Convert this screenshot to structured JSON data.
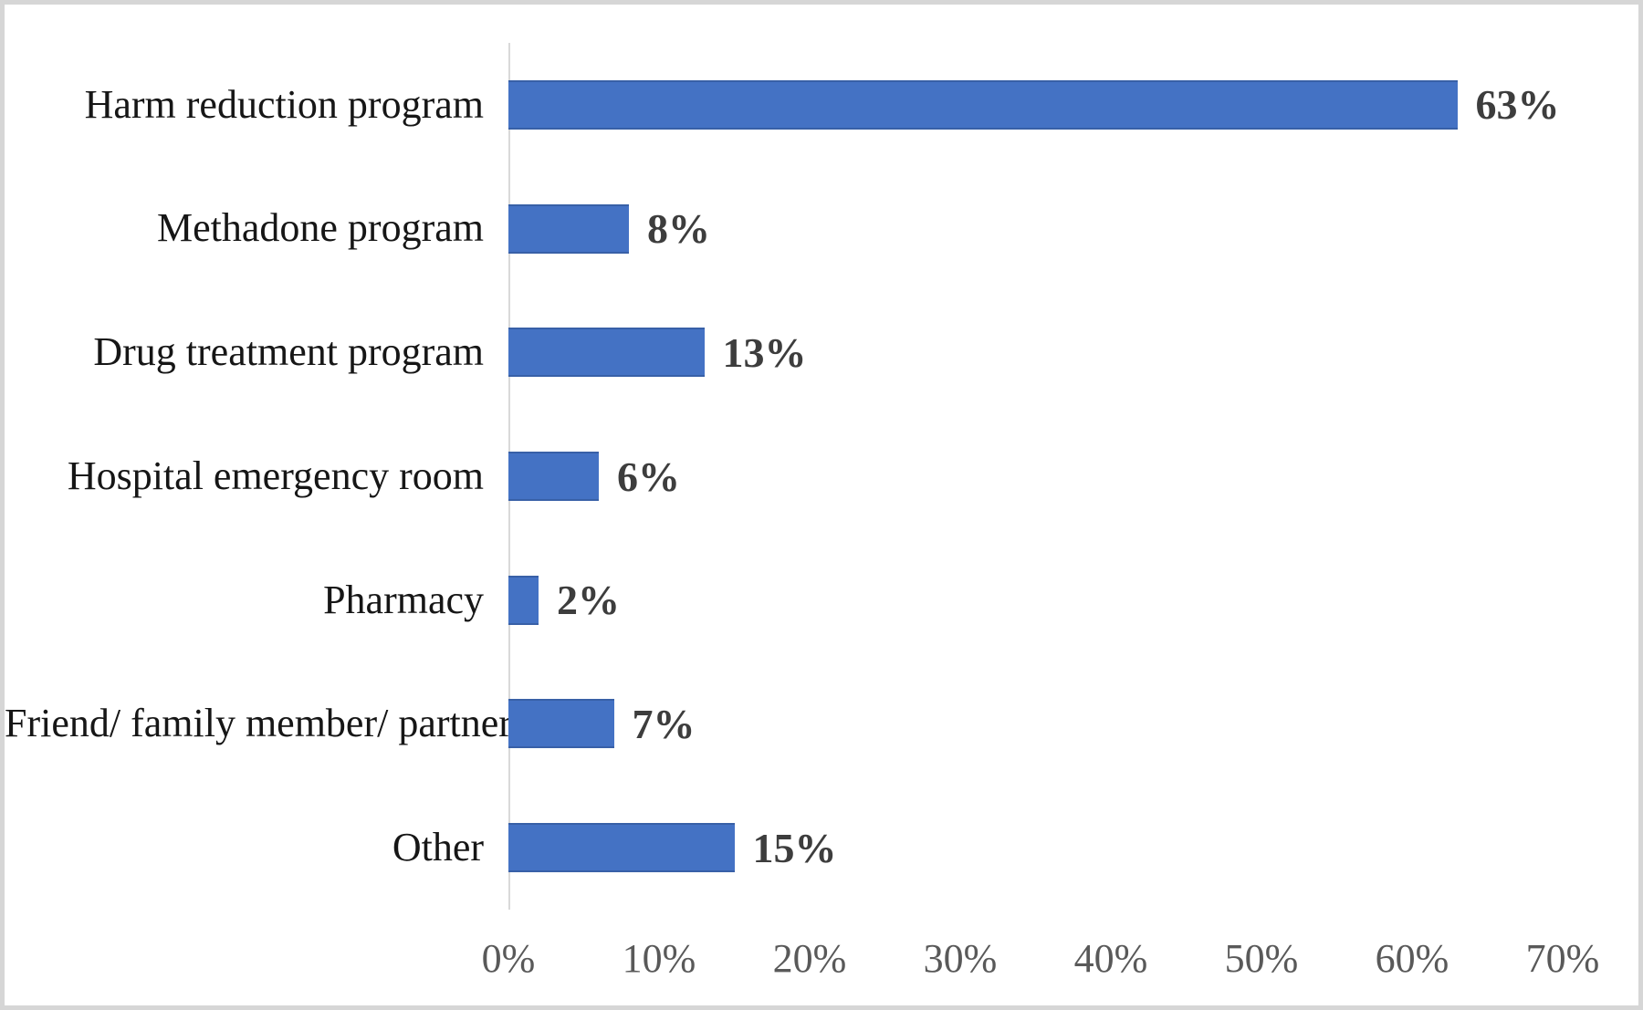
{
  "chart_data": {
    "type": "bar",
    "orientation": "horizontal",
    "title": "",
    "xlabel": "",
    "ylabel": "",
    "categories": [
      "Harm reduction program",
      "Methadone program",
      "Drug treatment program",
      "Hospital emergency room",
      "Pharmacy",
      "Friend/ family member/ partner",
      "Other"
    ],
    "values": [
      63,
      8,
      13,
      6,
      2,
      7,
      15
    ],
    "value_labels": [
      "63%",
      "8%",
      "13%",
      "6%",
      "2%",
      "7%",
      "15%"
    ],
    "xlim": [
      0,
      70
    ],
    "x_tick_values": [
      0,
      10,
      20,
      30,
      40,
      50,
      60,
      70
    ],
    "x_tick_labels": [
      "0%",
      "10%",
      "20%",
      "30%",
      "40%",
      "50%",
      "60%",
      "70%"
    ],
    "grid": false,
    "legend": false,
    "colors": {
      "bar_fill": "#4472C4",
      "axis_line": "#D9D9D9",
      "tick_label": "#595959",
      "category_label": "#161616",
      "value_label": "#3D3D3D",
      "chart_border": "#D6D6D6",
      "background": "#FFFFFF"
    }
  }
}
